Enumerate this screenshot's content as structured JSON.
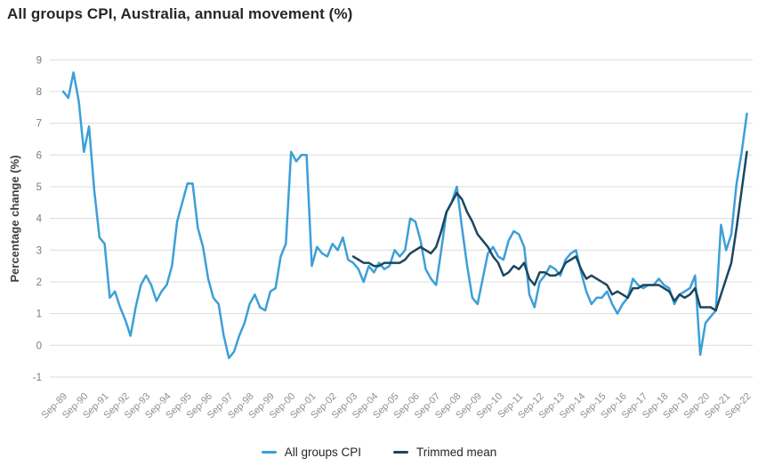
{
  "title": "All groups CPI, Australia, annual movement (%)",
  "y_axis": {
    "title": "Percentage change (%)"
  },
  "legend": {
    "items": [
      {
        "label": "All groups CPI",
        "color": "#3c9fd8"
      },
      {
        "label": "Trimmed mean",
        "color": "#1b465f"
      }
    ]
  },
  "colors": {
    "all_groups_cpi": "#3c9fd8",
    "trimmed_mean": "#1b465f",
    "gridline": "#dcdcdc",
    "title_text": "#262626",
    "tick_text": "#8f8f8f"
  },
  "chart_data": {
    "type": "line",
    "title": "All groups CPI, Australia, annual movement (%)",
    "xlabel": "",
    "ylabel": "Percentage change (%)",
    "frequency": "quarterly",
    "x_start": "Sep-89",
    "x_end": "Sep-22",
    "ylim": [
      -1,
      9
    ],
    "y_ticks": [
      -1,
      0,
      1,
      2,
      3,
      4,
      5,
      6,
      7,
      8,
      9
    ],
    "grid": "horizontal",
    "legend_position": "bottom",
    "x_tick_labels": [
      "Sep-89",
      "Sep-90",
      "Sep-91",
      "Sep-92",
      "Sep-93",
      "Sep-94",
      "Sep-95",
      "Sep-96",
      "Sep-97",
      "Sep-98",
      "Sep-99",
      "Sep-00",
      "Sep-01",
      "Sep-02",
      "Sep-03",
      "Sep-04",
      "Sep-05",
      "Sep-06",
      "Sep-07",
      "Sep-08",
      "Sep-09",
      "Sep-10",
      "Sep-11",
      "Sep-12",
      "Sep-13",
      "Sep-14",
      "Sep-15",
      "Sep-16",
      "Sep-17",
      "Sep-18",
      "Sep-19",
      "Sep-20",
      "Sep-21",
      "Sep-22"
    ],
    "x_tick_every": 4,
    "series": [
      {
        "name": "All groups CPI",
        "color": "#3c9fd8",
        "start_index": 0,
        "start_quarter": "Sep-89",
        "values": [
          8.0,
          7.8,
          8.6,
          7.7,
          6.1,
          6.9,
          4.9,
          3.4,
          3.2,
          1.5,
          1.7,
          1.2,
          0.8,
          0.3,
          1.2,
          1.9,
          2.2,
          1.9,
          1.4,
          1.7,
          1.9,
          2.5,
          3.9,
          4.5,
          5.1,
          5.1,
          3.7,
          3.1,
          2.1,
          1.5,
          1.3,
          0.3,
          -0.4,
          -0.2,
          0.3,
          0.7,
          1.3,
          1.6,
          1.2,
          1.1,
          1.7,
          1.8,
          2.8,
          3.2,
          6.1,
          5.8,
          6.0,
          6.0,
          2.5,
          3.1,
          2.9,
          2.8,
          3.2,
          3.0,
          3.4,
          2.7,
          2.6,
          2.4,
          2.0,
          2.5,
          2.3,
          2.6,
          2.4,
          2.5,
          3.0,
          2.8,
          3.0,
          4.0,
          3.9,
          3.3,
          2.4,
          2.1,
          1.9,
          3.0,
          4.2,
          4.5,
          5.0,
          3.7,
          2.5,
          1.5,
          1.3,
          2.1,
          2.9,
          3.1,
          2.8,
          2.7,
          3.3,
          3.6,
          3.5,
          3.1,
          1.6,
          1.2,
          2.0,
          2.2,
          2.5,
          2.4,
          2.2,
          2.7,
          2.9,
          3.0,
          2.3,
          1.7,
          1.3,
          1.5,
          1.5,
          1.7,
          1.3,
          1.0,
          1.3,
          1.5,
          2.1,
          1.9,
          1.8,
          1.9,
          1.9,
          2.1,
          1.9,
          1.8,
          1.3,
          1.6,
          1.7,
          1.8,
          2.2,
          -0.3,
          0.7,
          0.9,
          1.1,
          3.8,
          3.0,
          3.5,
          5.1,
          6.1,
          7.3
        ]
      },
      {
        "name": "Trimmed mean",
        "color": "#1b465f",
        "start_index": 56,
        "start_quarter": "Sep-03",
        "values": [
          2.8,
          2.7,
          2.6,
          2.6,
          2.5,
          2.5,
          2.6,
          2.6,
          2.6,
          2.6,
          2.7,
          2.9,
          3.0,
          3.1,
          3.0,
          2.9,
          3.1,
          3.6,
          4.2,
          4.5,
          4.8,
          4.6,
          4.2,
          3.9,
          3.5,
          3.3,
          3.1,
          2.8,
          2.6,
          2.2,
          2.3,
          2.5,
          2.4,
          2.6,
          2.1,
          1.9,
          2.3,
          2.3,
          2.2,
          2.2,
          2.3,
          2.6,
          2.7,
          2.8,
          2.4,
          2.1,
          2.2,
          2.1,
          2.0,
          1.9,
          1.6,
          1.7,
          1.6,
          1.5,
          1.8,
          1.8,
          1.9,
          1.9,
          1.9,
          1.9,
          1.8,
          1.7,
          1.4,
          1.6,
          1.5,
          1.6,
          1.8,
          1.2,
          1.2,
          1.2,
          1.1,
          1.6,
          2.1,
          2.6,
          3.7,
          4.9,
          6.1
        ]
      }
    ]
  }
}
